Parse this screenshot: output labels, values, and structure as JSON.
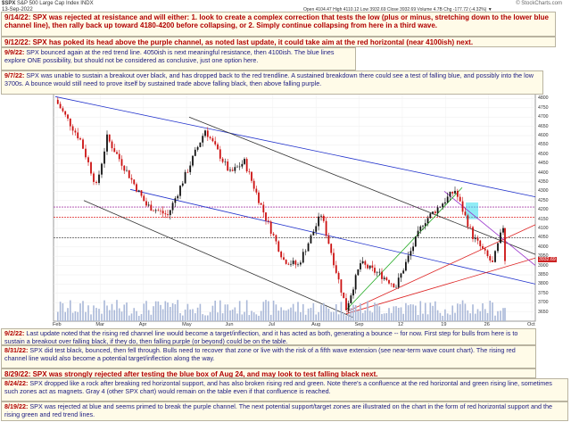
{
  "header": {
    "symbol": "$SPX",
    "name": "S&P 500 Large Cap Index",
    "exchange": "INDX",
    "date": "13-Sep-2022",
    "watermark": "© StockCharts.com",
    "ohlc": "Open 4104.47  High 4110.12  Low 3932.69  Close 3932.69  Volume 4.7B  Chg -177.72 (-4.32%) ▼"
  },
  "annotations": [
    {
      "date": "9/14/22:",
      "text": "SPX was rejected at resistance and will either:  1. look to create a complex correction that tests the low (plus or minus, stretching down to the lower blue channel line), then rally back up toward 4180-4200 before collapsing, or 2. Simply continue collapsing from here in a third wave.",
      "style": "big"
    },
    {
      "date": "9/12/22:",
      "text": "SPX has poked its head above the purple channel, as noted last update, it could take aim at the red horizontal (near 4100ish) next.",
      "style": "big"
    },
    {
      "date": "9/9/22:",
      "text": "SPX bounced again at the red trend line.  4050ish is next meaningful resistance, then 4100ish.  The blue lines explore ONE possibility, but should not be considered as conclusive, just one option here.",
      "style": "normal"
    },
    {
      "date": "9/7/22:",
      "text": "SPX was unable to sustain a breakout over black, and has dropped back to the red trendline.  A sustained breakdown there could see a test of falling blue, and possibly into the low 3700s.  A bounce would still need to prove itself by sustained trade above falling black, then above falling purple.",
      "style": "normal"
    },
    {
      "date": "9/2/22:",
      "text": "Last update noted that the rising red channel line would become a target/inflection, and it has acted as both, generating a bounce -- for now.  First step for bulls from here is to sustain a breakout over falling black, if they do, then falling purple (or beyond) could be on the table.",
      "style": "normal"
    },
    {
      "date": "8/31/22:",
      "text": "SPX did test black, bounced, then fell through.  Bulls need to recover that zone or live with the risk of a fifth wave extension (see near-term wave count chart).  The rising red channel line would also become a potential target/inflection along the way.",
      "style": "normal"
    },
    {
      "date": "8/29/22:",
      "text": "SPX was strongly rejected after testing the blue box of Aug 24, and may look to test falling black next.",
      "style": "big"
    },
    {
      "date": "8/24/22:",
      "text": "SPX dropped like a rock after breaking red horizontal support, and has also broken rising red and green.  Note there's a confluence at the red horizontal and green rising line, sometimes such zones act as magnets.  Gray 4 (other SPX chart) would remain on the table even if that confluence is reached.",
      "style": "normal"
    },
    {
      "date": "8/19/22:",
      "text": "SPX was rejected at blue and seems primed to break the purple channel.  The next potential support/target zones are illustrated on the chart in the form of red horizontal support and the rising green and red trend lines.",
      "style": "normal"
    }
  ],
  "chart_data": {
    "type": "candlestick",
    "title": "$SPX S&P 500 Large Cap Index",
    "x_range": [
      "2022-01-03",
      "2022-09-30"
    ],
    "x_ticks": [
      "Feb",
      "Mar",
      "Apr",
      "May",
      "Jun",
      "Jul",
      "Aug",
      "Sep",
      "12",
      "19",
      "26",
      "Oct"
    ],
    "y_range": [
      3600,
      4850
    ],
    "y_ticks": [
      3650,
      3700,
      3750,
      3800,
      3850,
      3900,
      3950,
      4000,
      4050,
      4100,
      4150,
      4200,
      4250,
      4300,
      4350,
      4400,
      4450,
      4500,
      4550,
      4600,
      4650,
      4700,
      4750,
      4800
    ],
    "last_price_label": "3932.69",
    "price_series": [
      {
        "date": "2022-01-04",
        "close": 4793
      },
      {
        "date": "2022-01-18",
        "close": 4577
      },
      {
        "date": "2022-01-27",
        "close": 4327
      },
      {
        "date": "2022-02-02",
        "close": 4589
      },
      {
        "date": "2022-02-24",
        "close": 4225
      },
      {
        "date": "2022-03-08",
        "close": 4170
      },
      {
        "date": "2022-03-29",
        "close": 4631
      },
      {
        "date": "2022-04-12",
        "close": 4397
      },
      {
        "date": "2022-04-20",
        "close": 4459
      },
      {
        "date": "2022-05-02",
        "close": 4155
      },
      {
        "date": "2022-05-12",
        "close": 3930
      },
      {
        "date": "2022-05-20",
        "close": 3901
      },
      {
        "date": "2022-06-02",
        "close": 4176
      },
      {
        "date": "2022-06-16",
        "close": 3667
      },
      {
        "date": "2022-06-24",
        "close": 3912
      },
      {
        "date": "2022-07-06",
        "close": 3845
      },
      {
        "date": "2022-07-14",
        "close": 3790
      },
      {
        "date": "2022-07-29",
        "close": 4130
      },
      {
        "date": "2022-08-16",
        "close": 4305
      },
      {
        "date": "2022-08-26",
        "close": 4057
      },
      {
        "date": "2022-09-06",
        "close": 3909
      },
      {
        "date": "2022-09-12",
        "close": 4110
      },
      {
        "date": "2022-09-13",
        "close": 3933
      }
    ],
    "trend_lines": [
      {
        "color": "#2233cc",
        "points": [
          [
            "2022-01-04",
            4810
          ],
          [
            "2022-09-30",
            4270
          ]
        ]
      },
      {
        "color": "#2233cc",
        "points": [
          [
            "2022-02-15",
            4310
          ],
          [
            "2022-09-30",
            3800
          ]
        ]
      },
      {
        "color": "#333333",
        "points": [
          [
            "2022-03-20",
            4700
          ],
          [
            "2022-09-30",
            3960
          ]
        ]
      },
      {
        "color": "#333333",
        "points": [
          [
            "2022-01-20",
            4250
          ],
          [
            "2022-06-20",
            3620
          ]
        ]
      },
      {
        "color": "#dd2222",
        "points": [
          [
            "2022-06-16",
            3650
          ],
          [
            "2022-09-30",
            4120
          ]
        ]
      },
      {
        "color": "#dd2222",
        "points": [
          [
            "2022-06-16",
            3640
          ],
          [
            "2022-09-30",
            3940
          ]
        ]
      },
      {
        "color": "#9933cc",
        "points": [
          [
            "2022-08-10",
            4300
          ],
          [
            "2022-09-30",
            3900
          ]
        ]
      },
      {
        "color": "#22aa22",
        "points": [
          [
            "2022-06-16",
            3660
          ],
          [
            "2022-08-20",
            4320
          ]
        ]
      }
    ],
    "horizontal_lines": [
      {
        "color": "#aa44aa",
        "value": 4215
      },
      {
        "color": "#dd2222",
        "value": 4160
      },
      {
        "color": "#555555",
        "value": 4050
      }
    ],
    "highlight_box": {
      "color": "#33ddee",
      "start": "2022-08-22",
      "end": "2022-08-29",
      "low": 4150,
      "high": 4240
    }
  }
}
